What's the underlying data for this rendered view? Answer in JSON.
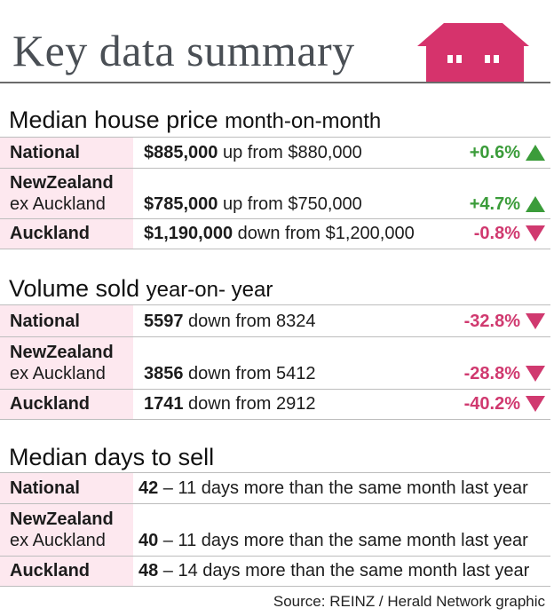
{
  "title": "Key data summary",
  "colors": {
    "accent_pink": "#d6336c",
    "label_bg": "#fde8ef",
    "up_green": "#3b9c3a",
    "down_pink": "#d0396f"
  },
  "sections": {
    "price": {
      "title": "Median house price",
      "subtitle": "month-on-month",
      "rows": [
        {
          "label_line1": "National",
          "label_line2": "",
          "value": "$885,000",
          "desc": " up from $880,000",
          "change": "+0.6%",
          "direction": "up"
        },
        {
          "label_line1": "NewZealand",
          "label_line2": "ex Auckland",
          "value": "$785,000",
          "desc": " up from $750,000",
          "change": "+4.7%",
          "direction": "up"
        },
        {
          "label_line1": "Auckland",
          "label_line2": "",
          "value": "$1,190,000",
          "desc": " down from $1,200,000",
          "change": "-0.8%",
          "direction": "down"
        }
      ]
    },
    "volume": {
      "title": "Volume sold",
      "subtitle": "year-on- year",
      "rows": [
        {
          "label_line1": "National",
          "label_line2": "",
          "value": "5597",
          "desc": " down from 8324",
          "change": "-32.8%",
          "direction": "down"
        },
        {
          "label_line1": "NewZealand",
          "label_line2": "ex Auckland",
          "value": "3856",
          "desc": " down from 5412",
          "change": "-28.8%",
          "direction": "down"
        },
        {
          "label_line1": "Auckland",
          "label_line2": "",
          "value": "1741",
          "desc": " down from 2912",
          "change": "-40.2%",
          "direction": "down"
        }
      ]
    },
    "days": {
      "title": "Median days to sell",
      "rows": [
        {
          "label_line1": "National",
          "label_line2": "",
          "value": "42",
          "desc": " – 11 days more than the same month last year"
        },
        {
          "label_line1": "NewZealand",
          "label_line2": "ex Auckland",
          "value": "40",
          "desc": " – 11 days more than the same month last year"
        },
        {
          "label_line1": "Auckland",
          "label_line2": "",
          "value": "48",
          "desc": " – 14 days more than the same month last year"
        }
      ]
    }
  },
  "source": "Source: REINZ / Herald Network graphic"
}
